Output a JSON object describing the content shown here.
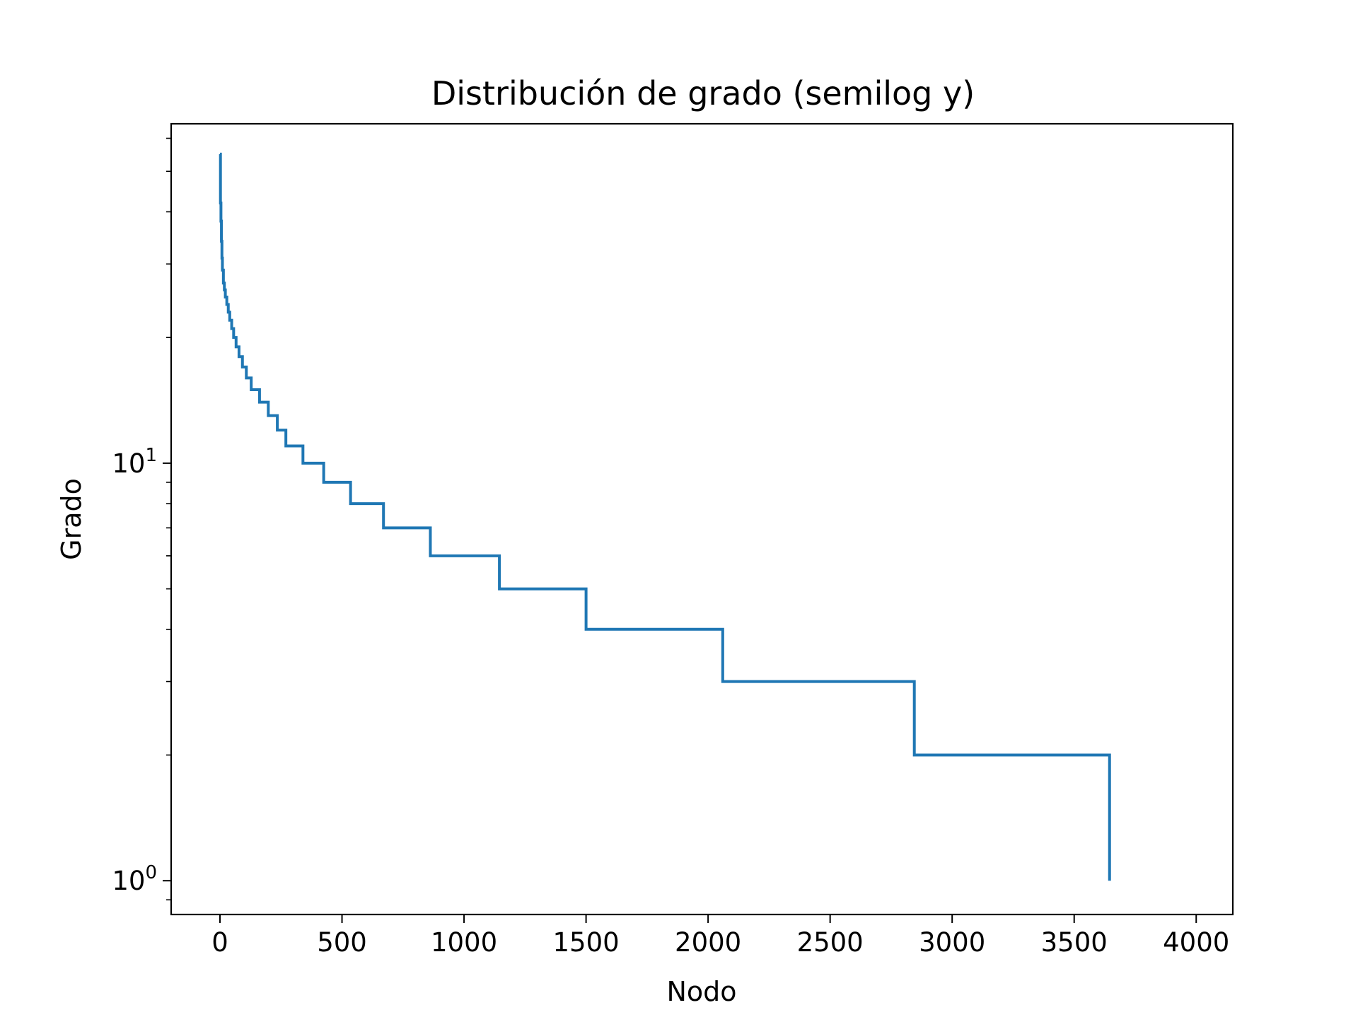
{
  "chart_data": {
    "type": "line",
    "title": "Distribución de grado (semilog y)",
    "xlabel": "Nodo",
    "ylabel": "Grado",
    "xscale": "linear",
    "yscale": "log",
    "xlim": [
      -200,
      4150
    ],
    "ylim": [
      0.83,
      65
    ],
    "xticks": [
      {
        "value": 0,
        "label": "0"
      },
      {
        "value": 500,
        "label": "500"
      },
      {
        "value": 1000,
        "label": "1000"
      },
      {
        "value": 1500,
        "label": "1500"
      },
      {
        "value": 2000,
        "label": "2000"
      },
      {
        "value": 2500,
        "label": "2500"
      },
      {
        "value": 3000,
        "label": "3000"
      },
      {
        "value": 3500,
        "label": "3500"
      },
      {
        "value": 4000,
        "label": "4000"
      }
    ],
    "yticks": [
      {
        "value": 1,
        "base": "10",
        "exp": "0"
      },
      {
        "value": 10,
        "base": "10",
        "exp": "1"
      }
    ],
    "yminor_ticks": [
      0.9,
      2,
      3,
      4,
      5,
      6,
      7,
      8,
      9,
      20,
      30,
      40,
      50,
      60
    ],
    "grid": false,
    "legend": "none",
    "colors": {
      "line": "#1f77b4",
      "axes": "#000000",
      "background": "#ffffff"
    },
    "series": [
      {
        "step": "post",
        "x": [
          0,
          2,
          4,
          6,
          8,
          10,
          14,
          18,
          22,
          28,
          34,
          40,
          48,
          56,
          66,
          78,
          92,
          108,
          128,
          162,
          198,
          235,
          270,
          340,
          425,
          535,
          670,
          862,
          1145,
          1500,
          2060,
          2845,
          3645
        ],
        "y": [
          55,
          42,
          38,
          34,
          31,
          29,
          27,
          26,
          25,
          24,
          23,
          22,
          21,
          20,
          19,
          18,
          17,
          16,
          15,
          14,
          13,
          12,
          11,
          10,
          9,
          8,
          7,
          6,
          5,
          4,
          3,
          2,
          1
        ]
      }
    ]
  }
}
